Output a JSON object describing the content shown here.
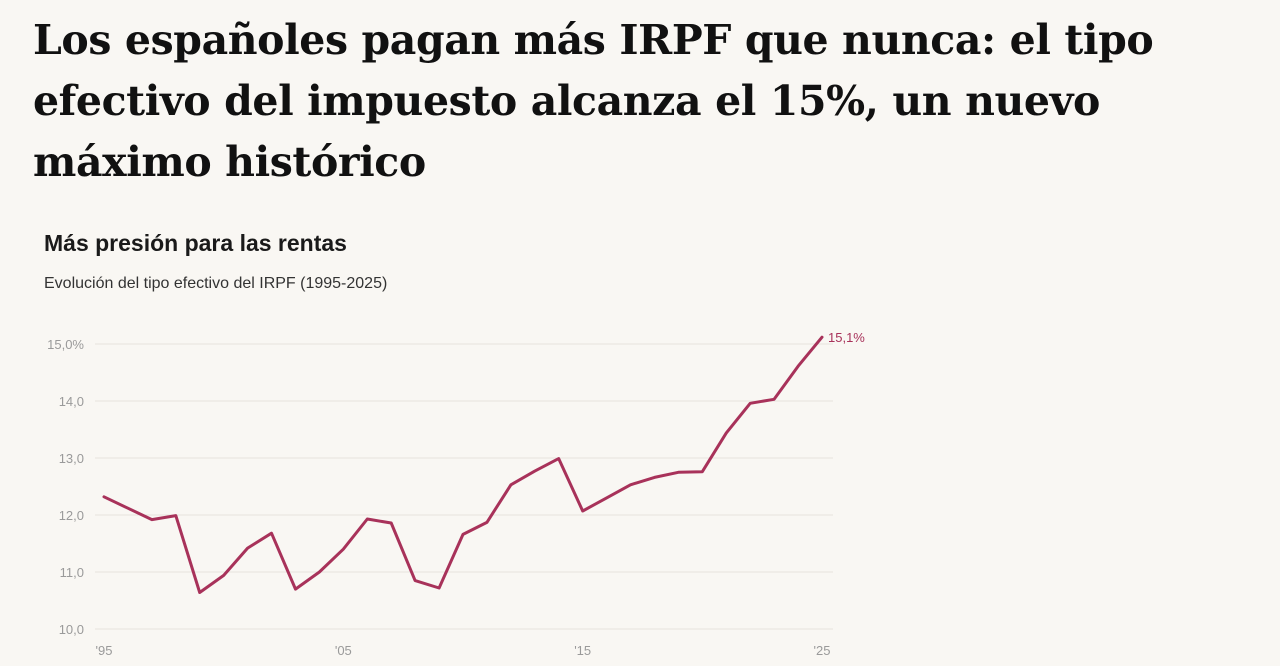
{
  "headline": "Los españoles pagan más IRPF que nunca: el tipo efectivo del impuesto alcanza el 15%, un nuevo máximo histórico",
  "chart_data": {
    "type": "line",
    "title": "Más presión para las rentas",
    "subtitle": "Evolución del tipo efectivo del IRPF (1995-2025)",
    "xlabel": "",
    "ylabel": "",
    "ylim": [
      10,
      15.1
    ],
    "y_ticks": [
      10,
      11,
      12,
      13,
      14,
      15
    ],
    "y_tick_labels": [
      "10,0",
      "11,0",
      "12,0",
      "13,0",
      "14,0",
      "15,0%"
    ],
    "x_ticks": [
      1995,
      2005,
      2015,
      2025
    ],
    "x_tick_labels": [
      "'95",
      "'05",
      "'15",
      "'25"
    ],
    "grid": true,
    "colors": {
      "line": "#a8325a",
      "grid": "#e6e3de",
      "tick": "#9a9a9a"
    },
    "end_label": "15,1%",
    "series": [
      {
        "x": [
          1995,
          1996,
          1997,
          1998,
          1999,
          2000,
          2001,
          2002,
          2003,
          2004,
          2005,
          2006,
          2007,
          2008,
          2009,
          2010,
          2011,
          2012,
          2013,
          2014,
          2015,
          2016,
          2017,
          2018,
          2019,
          2020,
          2021,
          2022,
          2023,
          2024,
          2025
        ],
        "values": [
          12.32,
          12.12,
          11.92,
          11.99,
          10.64,
          10.94,
          11.42,
          11.68,
          10.7,
          11.0,
          11.4,
          11.93,
          11.86,
          10.85,
          10.72,
          11.66,
          11.87,
          12.53,
          12.77,
          12.99,
          12.07,
          12.3,
          12.53,
          12.66,
          12.75,
          12.76,
          13.44,
          13.96,
          14.03,
          14.61,
          15.12
        ]
      }
    ]
  }
}
